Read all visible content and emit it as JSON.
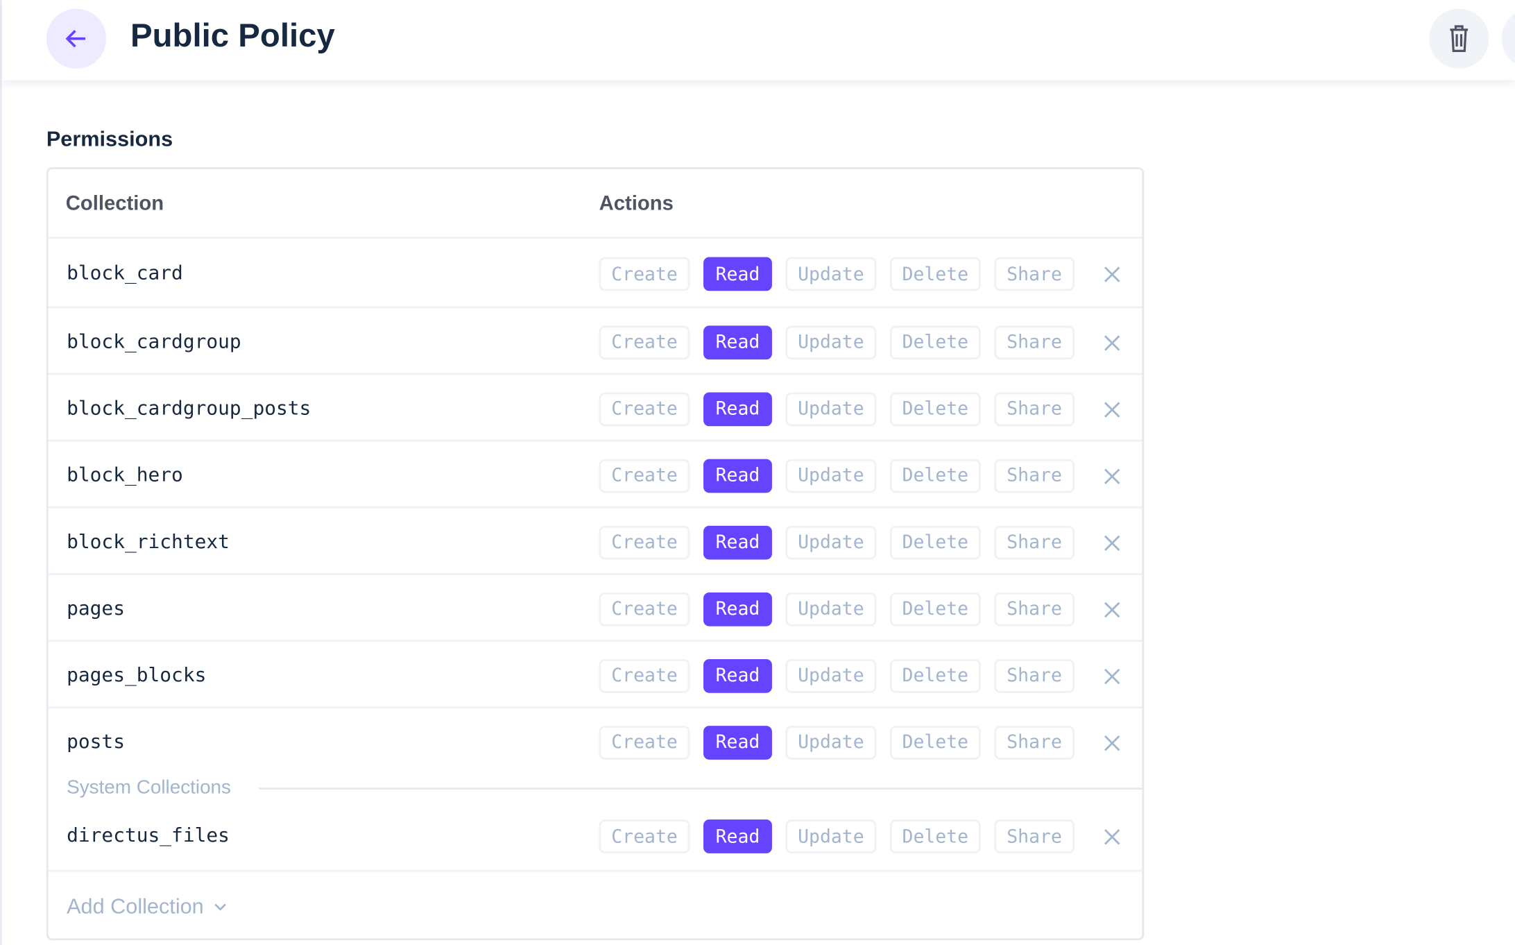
{
  "header": {
    "title": "Public Policy",
    "back_icon": "arrow-left-icon",
    "delete_icon": "trash-icon"
  },
  "section_title": "Permissions",
  "table": {
    "columns": [
      "Collection",
      "Actions"
    ],
    "action_labels": [
      "Create",
      "Read",
      "Update",
      "Delete",
      "Share"
    ],
    "rows": [
      {
        "collection": "block_card",
        "enabled": [
          "Read"
        ]
      },
      {
        "collection": "block_cardgroup",
        "enabled": [
          "Read"
        ]
      },
      {
        "collection": "block_cardgroup_posts",
        "enabled": [
          "Read"
        ]
      },
      {
        "collection": "block_hero",
        "enabled": [
          "Read"
        ]
      },
      {
        "collection": "block_richtext",
        "enabled": [
          "Read"
        ]
      },
      {
        "collection": "pages",
        "enabled": [
          "Read"
        ]
      },
      {
        "collection": "pages_blocks",
        "enabled": [
          "Read"
        ]
      },
      {
        "collection": "posts",
        "enabled": [
          "Read"
        ]
      }
    ],
    "system_label": "System Collections",
    "system_rows": [
      {
        "collection": "directus_files",
        "enabled": [
          "Read"
        ]
      }
    ],
    "add_label": "Add Collection"
  },
  "colors": {
    "accent": "#6644ff",
    "muted": "#a2b5cd",
    "text": "#172940"
  }
}
